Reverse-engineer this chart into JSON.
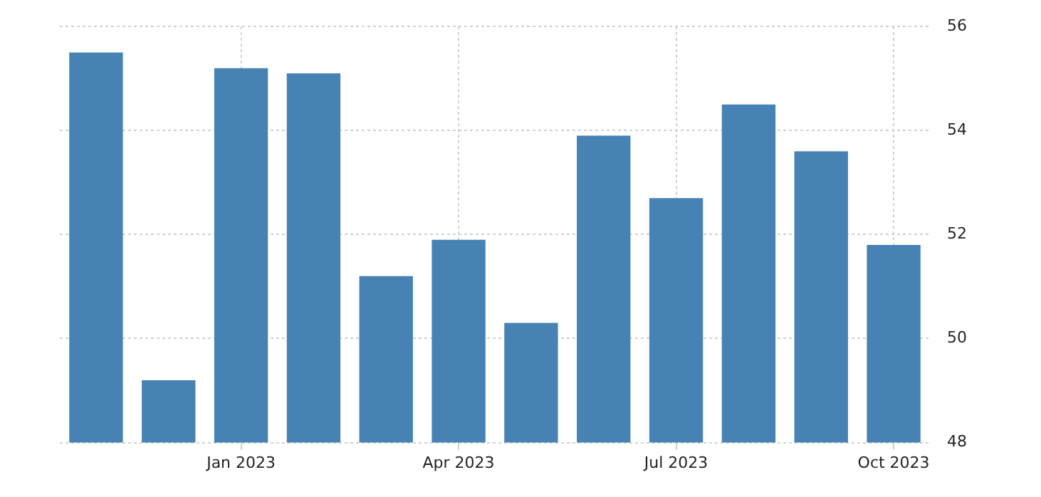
{
  "chart_data": {
    "type": "bar",
    "categories": [
      null,
      null,
      "Jan 2023",
      null,
      null,
      "Apr 2023",
      null,
      null,
      "Jul 2023",
      null,
      null,
      "Oct 2023"
    ],
    "values": [
      55.5,
      49.2,
      55.2,
      55.1,
      51.2,
      51.9,
      50.3,
      53.9,
      52.7,
      54.5,
      53.6,
      51.8
    ],
    "color": "#4682b4",
    "ylim": [
      48,
      56
    ],
    "yticks": [
      48,
      50,
      52,
      54,
      56
    ],
    "grid": true
  }
}
